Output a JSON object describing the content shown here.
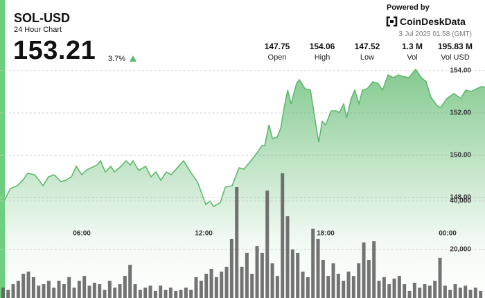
{
  "header": {
    "symbol": "SOL-USD",
    "subtitle": "24 Hour Chart",
    "price": 153.21,
    "change": "3.7%",
    "stats": [
      {
        "value": 147.75,
        "label": "Open"
      },
      {
        "value": 154.06,
        "label": "High"
      },
      {
        "value": 147.52,
        "label": "Low"
      },
      {
        "value": "1.3 M",
        "label": "Vol"
      },
      {
        "value": "195.83 M",
        "label": "Vol USD"
      }
    ],
    "powered_by": "Powered by",
    "brand": "CoinDeskData",
    "timestamp": "3 Jul 2025 01:58 (GMT)"
  },
  "chart_data": [
    {
      "type": "area",
      "color": "#5cb86c",
      "x": [
        2.21,
        2.49,
        2.83,
        3.1,
        3.34,
        3.68,
        3.95,
        4.09,
        4.36,
        4.64,
        4.98,
        5.22,
        5.49,
        5.73,
        6.0,
        6.24,
        6.75,
        6.92,
        7.16,
        7.43,
        7.6,
        7.94,
        8.18,
        8.39,
        8.52,
        8.8,
        9.14,
        9.41,
        9.65,
        9.89,
        10.16,
        10.4,
        10.77,
        11.01,
        11.35,
        11.69,
        12.1,
        12.31,
        12.48,
        12.82,
        13.06,
        13.4,
        13.74,
        13.98,
        14.32,
        14.59,
        14.87,
        15.0,
        15.21,
        15.38,
        15.61,
        15.79,
        15.96,
        16.13,
        16.3,
        16.57,
        16.71,
        16.98,
        17.25,
        17.49,
        17.66,
        17.83,
        18.0,
        18.27,
        18.51,
        18.68,
        18.89,
        19.03,
        19.26,
        19.43,
        19.64,
        19.81,
        20.05,
        20.32,
        20.56,
        20.8,
        21.07,
        21.34,
        21.58,
        21.75,
        22.09,
        22.43,
        22.71,
        22.94,
        23.18,
        23.46,
        23.66,
        23.97,
        24.31,
        24.65,
        24.89,
        25.16,
        25.43,
        25.67,
        25.84
      ],
      "values": [
        147.9,
        148.43,
        148.56,
        148.82,
        149.15,
        149.08,
        148.75,
        148.56,
        148.98,
        149.08,
        148.75,
        148.82,
        148.98,
        149.48,
        149.08,
        149.31,
        149.54,
        149.74,
        149.21,
        149.48,
        149.21,
        149.48,
        149.74,
        149.54,
        149.74,
        149.28,
        149.48,
        148.98,
        149.21,
        148.82,
        149.21,
        149.08,
        149.48,
        149.74,
        149.21,
        148.75,
        147.67,
        147.84,
        147.57,
        147.77,
        148.49,
        148.56,
        149.41,
        149.34,
        149.74,
        150.07,
        150.46,
        150.46,
        151.44,
        150.79,
        150.85,
        151.28,
        152.26,
        153.08,
        152.43,
        153.41,
        153.57,
        153.15,
        153.08,
        151.61,
        150.62,
        151.61,
        151.44,
        152.1,
        152.1,
        152.03,
        152.43,
        151.77,
        152.69,
        153.08,
        152.43,
        153.08,
        153.15,
        153.48,
        153.41,
        153.08,
        153.8,
        153.67,
        153.8,
        153.74,
        153.67,
        154.06,
        153.67,
        153.48,
        152.75,
        152.36,
        152.26,
        152.69,
        152.92,
        152.69,
        153.08,
        153.02,
        153.15,
        153.25,
        153.21
      ],
      "xlim": [
        2,
        25.84
      ],
      "ylim": [
        143.25,
        154.23
      ],
      "xticks": [
        {
          "value": 6,
          "label": "06:00"
        },
        {
          "value": 12,
          "label": "12:00"
        },
        {
          "value": 18,
          "label": "18:00"
        },
        {
          "value": 24,
          "label": "00:00"
        }
      ],
      "yticks": [
        {
          "value": 148,
          "label": "148.00"
        },
        {
          "value": 150,
          "label": "150.00"
        },
        {
          "value": 152,
          "label": "152.00"
        },
        {
          "value": 154,
          "label": "154.00"
        }
      ],
      "grid": true
    },
    {
      "type": "bar",
      "color": "#5a5a5a",
      "x": [
        2.125,
        2.375,
        2.625,
        2.875,
        3.125,
        3.375,
        3.625,
        3.875,
        4.125,
        4.375,
        4.625,
        4.875,
        5.125,
        5.375,
        5.625,
        5.875,
        6.125,
        6.375,
        6.625,
        6.875,
        7.125,
        7.375,
        7.625,
        7.875,
        8.125,
        8.375,
        8.625,
        8.875,
        9.125,
        9.375,
        9.625,
        9.875,
        10.125,
        10.375,
        10.625,
        10.875,
        11.125,
        11.375,
        11.625,
        11.875,
        12.125,
        12.375,
        12.625,
        12.875,
        13.125,
        13.375,
        13.625,
        13.875,
        14.125,
        14.375,
        14.625,
        14.875,
        15.125,
        15.375,
        15.625,
        15.875,
        16.125,
        16.375,
        16.625,
        16.875,
        17.125,
        17.375,
        17.625,
        17.875,
        18.125,
        18.375,
        18.625,
        18.875,
        19.125,
        19.375,
        19.625,
        19.875,
        20.125,
        20.375,
        20.625,
        20.875,
        21.125,
        21.375,
        21.625,
        21.875,
        22.125,
        22.375,
        22.625,
        22.875,
        23.125,
        23.375,
        23.625,
        23.875,
        24.125,
        24.375,
        24.625,
        24.875,
        25.125,
        25.375,
        25.625
      ],
      "values": [
        4300,
        3400,
        5700,
        7100,
        10000,
        10900,
        8600,
        5100,
        5700,
        7100,
        4300,
        7100,
        5700,
        8600,
        4300,
        7100,
        9100,
        5100,
        6300,
        5700,
        3400,
        7100,
        4300,
        5700,
        9100,
        13700,
        5700,
        3400,
        4300,
        5100,
        2900,
        5100,
        3400,
        4300,
        2900,
        3400,
        4300,
        3400,
        8600,
        7100,
        10000,
        12000,
        8600,
        10900,
        12900,
        24300,
        45700,
        12900,
        18600,
        10000,
        21400,
        18600,
        44300,
        14300,
        9100,
        51400,
        33700,
        20000,
        18600,
        10900,
        8600,
        28600,
        24300,
        15700,
        9100,
        14300,
        10000,
        7100,
        10900,
        9100,
        14300,
        22900,
        15700,
        23400,
        7100,
        8600,
        5700,
        8000,
        9100,
        5700,
        2900,
        6300,
        4300,
        5700,
        5100,
        7100,
        16600,
        5100,
        3400,
        5700,
        4300,
        5100,
        3400,
        4300,
        2900
      ],
      "xlim": [
        2,
        25.84
      ],
      "ylim": [
        0,
        95700
      ],
      "yticks": [
        {
          "value": 20000,
          "label": "20,000"
        },
        {
          "value": 40000,
          "label": "40,000"
        }
      ],
      "grid": true
    }
  ]
}
